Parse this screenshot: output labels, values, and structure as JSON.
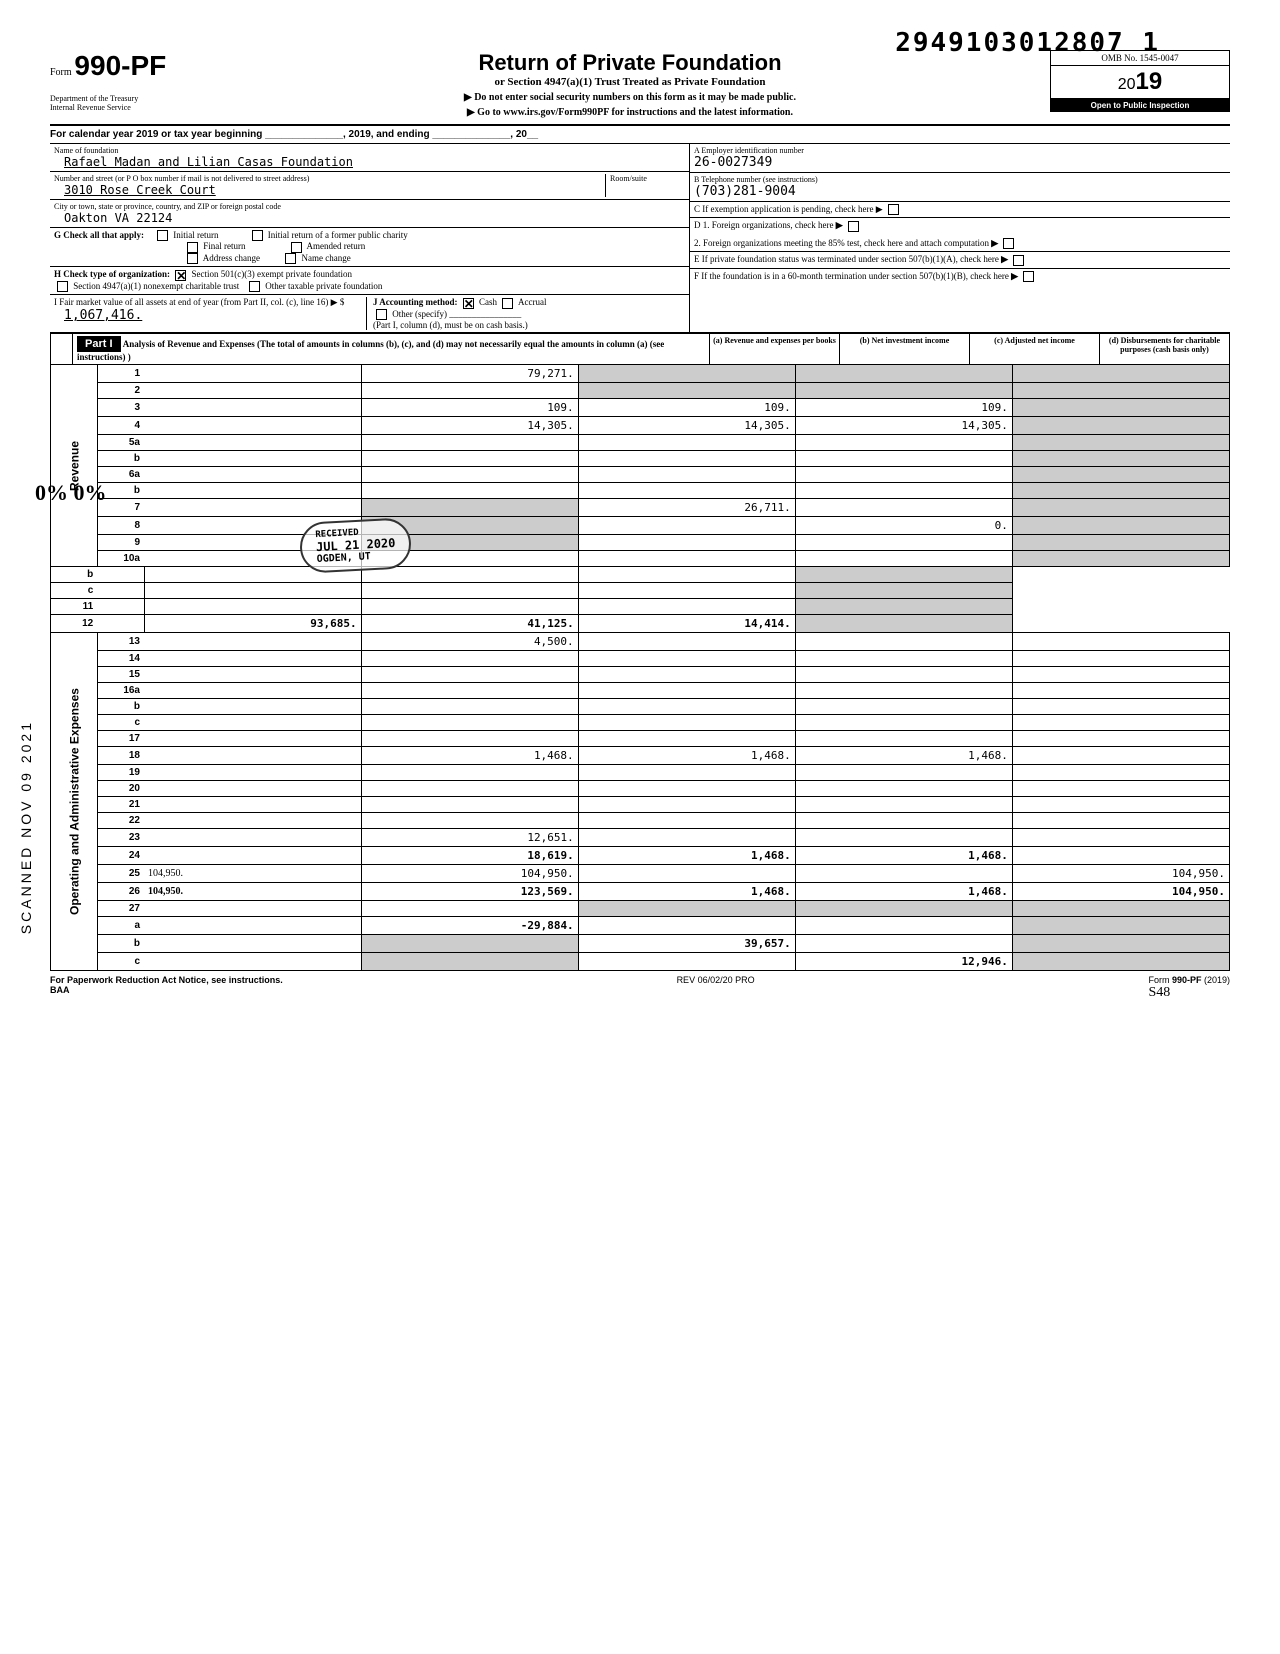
{
  "top_number": "2949103012807 1",
  "form": {
    "word": "Form",
    "number": "990-PF",
    "dept": "Department of the Treasury\nInternal Revenue Service"
  },
  "header": {
    "title": "Return of Private Foundation",
    "sub": "or Section 4947(a)(1) Trust Treated as Private Foundation",
    "note1": "▶ Do not enter social security numbers on this form as it may be made public.",
    "note2": "▶ Go to www.irs.gov/Form990PF for instructions and the latest information.",
    "omb": "OMB No. 1545-0047",
    "year": "19",
    "year_prefix": "20",
    "inspect": "Open to Public Inspection"
  },
  "cal_year": "For calendar year 2019 or tax year beginning ______________, 2019, and ending ______________, 20__",
  "foundation": {
    "name_label": "Name of foundation",
    "name": "Rafael Madan and Lilian Casas Foundation",
    "addr_label": "Number and street (or P O  box number if mail is not delivered to street address)",
    "room_label": "Room/suite",
    "addr": "3010 Rose Creek Court",
    "city_label": "City or town, state or province, country, and ZIP or foreign postal code",
    "city": "Oakton VA 22124",
    "ein_label": "A  Employer identification number",
    "ein": "26-0027349",
    "phone_label": "B  Telephone number (see instructions)",
    "phone": "(703)281-9004",
    "c_label": "C  If exemption application is pending, check here ▶"
  },
  "g": {
    "label": "G  Check all that apply:",
    "opts": [
      "Initial return",
      "Initial return of a former public charity",
      "Final return",
      "Amended return",
      "Address change",
      "Name change"
    ]
  },
  "h": {
    "label": "H  Check type of organization:",
    "opt1": "Section 501(c)(3) exempt private foundation",
    "opt2": "Section 4947(a)(1) nonexempt charitable trust",
    "opt3": "Other taxable private foundation"
  },
  "i": {
    "label": "I   Fair market value of all assets at end of year (from Part II, col. (c), line 16) ▶ $",
    "value": "1,067,416."
  },
  "j": {
    "label": "J   Accounting method:",
    "cash": "Cash",
    "accrual": "Accrual",
    "other": "Other (specify) ________________",
    "note": "(Part I, column (d), must be on cash basis.)"
  },
  "d": {
    "d1": "D  1. Foreign organizations, check here",
    "d2": "2. Foreign organizations meeting the 85% test, check here and attach computation"
  },
  "e": "E  If private foundation status was terminated under section 507(b)(1)(A), check here",
  "f": "F  If the foundation is in a 60-month termination under section 507(b)(1)(B), check here",
  "part1": {
    "desc": "Analysis of Revenue and Expenses (The total of amounts in columns (b), (c), and (d) may not necessarily equal the amounts in column (a) (see instructions) )",
    "col_a": "(a) Revenue and expenses per books",
    "col_b": "(b) Net investment income",
    "col_c": "(c) Adjusted net income",
    "col_d": "(d) Disbursements for charitable purposes (cash basis only)"
  },
  "side": {
    "revenue": "Revenue",
    "expenses": "Operating and Administrative Expenses"
  },
  "rows": {
    "r1": {
      "n": "1",
      "d": "",
      "a": "79,271.",
      "b": "",
      "c": ""
    },
    "r2": {
      "n": "2",
      "d": "",
      "a": "",
      "b": "",
      "c": ""
    },
    "r3": {
      "n": "3",
      "d": "",
      "a": "109.",
      "b": "109.",
      "c": "109."
    },
    "r4": {
      "n": "4",
      "d": "",
      "a": "14,305.",
      "b": "14,305.",
      "c": "14,305."
    },
    "r5a": {
      "n": "5a",
      "d": "",
      "a": "",
      "b": "",
      "c": ""
    },
    "r5b": {
      "n": "b",
      "d": "",
      "a": "",
      "b": "",
      "c": ""
    },
    "r6a": {
      "n": "6a",
      "d": "",
      "a": "",
      "b": "",
      "c": ""
    },
    "r6b": {
      "n": "b",
      "d": "",
      "a": "",
      "b": "",
      "c": ""
    },
    "r7": {
      "n": "7",
      "d": "",
      "a": "",
      "b": "26,711.",
      "c": ""
    },
    "r8": {
      "n": "8",
      "d": "",
      "a": "",
      "b": "",
      "c": "0."
    },
    "r9": {
      "n": "9",
      "d": "",
      "a": "",
      "b": "",
      "c": ""
    },
    "r10a": {
      "n": "10a",
      "d": "",
      "a": "",
      "b": "",
      "c": ""
    },
    "r10b": {
      "n": "b",
      "d": "",
      "a": "",
      "b": "",
      "c": ""
    },
    "r10c": {
      "n": "c",
      "d": "",
      "a": "",
      "b": "",
      "c": ""
    },
    "r11": {
      "n": "11",
      "d": "",
      "a": "",
      "b": "",
      "c": ""
    },
    "r12": {
      "n": "12",
      "d": "",
      "a": "93,685.",
      "b": "41,125.",
      "c": "14,414."
    },
    "r13": {
      "n": "13",
      "d": "",
      "a": "4,500.",
      "b": "",
      "c": ""
    },
    "r14": {
      "n": "14",
      "d": "",
      "a": "",
      "b": "",
      "c": ""
    },
    "r15": {
      "n": "15",
      "d": "",
      "a": "",
      "b": "",
      "c": ""
    },
    "r16a": {
      "n": "16a",
      "d": "",
      "a": "",
      "b": "",
      "c": ""
    },
    "r16b": {
      "n": "b",
      "d": "",
      "a": "",
      "b": "",
      "c": ""
    },
    "r16c": {
      "n": "c",
      "d": "",
      "a": "",
      "b": "",
      "c": ""
    },
    "r17": {
      "n": "17",
      "d": "",
      "a": "",
      "b": "",
      "c": ""
    },
    "r18": {
      "n": "18",
      "d": "",
      "a": "1,468.",
      "b": "1,468.",
      "c": "1,468."
    },
    "r19": {
      "n": "19",
      "d": "",
      "a": "",
      "b": "",
      "c": ""
    },
    "r20": {
      "n": "20",
      "d": "",
      "a": "",
      "b": "",
      "c": ""
    },
    "r21": {
      "n": "21",
      "d": "",
      "a": "",
      "b": "",
      "c": ""
    },
    "r22": {
      "n": "22",
      "d": "",
      "a": "",
      "b": "",
      "c": ""
    },
    "r23": {
      "n": "23",
      "d": "",
      "a": "12,651.",
      "b": "",
      "c": ""
    },
    "r24": {
      "n": "24",
      "d": "",
      "a": "18,619.",
      "b": "1,468.",
      "c": "1,468."
    },
    "r25": {
      "n": "25",
      "d": "104,950.",
      "a": "104,950.",
      "b": "",
      "c": ""
    },
    "r26": {
      "n": "26",
      "d": "104,950.",
      "a": "123,569.",
      "b": "1,468.",
      "c": "1,468."
    },
    "r27": {
      "n": "27",
      "d": "",
      "a": "",
      "b": "",
      "c": ""
    },
    "r27a": {
      "n": "a",
      "d": "",
      "a": "-29,884.",
      "b": "",
      "c": ""
    },
    "r27b": {
      "n": "b",
      "d": "",
      "a": "",
      "b": "39,657.",
      "c": ""
    },
    "r27c": {
      "n": "c",
      "d": "",
      "a": "",
      "b": "",
      "c": "12,946."
    }
  },
  "stamp": {
    "line1": "RECEIVED",
    "line2": "JUL 21 2020",
    "line3": "OGDEN, UT"
  },
  "scanned": "SCANNED  NOV 09 2021",
  "side_pct": "0%\n0%",
  "footer": {
    "left": "For Paperwork Reduction Act Notice, see instructions.",
    "left2": "BAA",
    "center": "REV 06/02/20 PRO",
    "right": "Form 990-PF (2019)"
  },
  "colors": {
    "ink": "#000000",
    "shade": "#cccccc",
    "bg": "#ffffff"
  }
}
